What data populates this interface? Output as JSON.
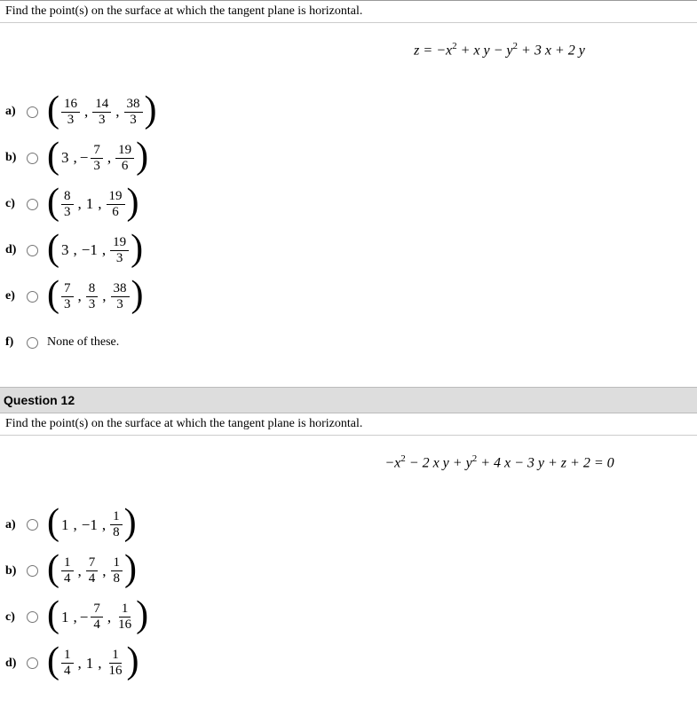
{
  "q11": {
    "prompt": "Find the point(s) on the surface at which the tangent plane is horizontal.",
    "equation_html": "<span class='eq-italic'>z</span> = −<span class='eq-italic'>x</span><sup>2</sup> + <span class='eq-italic'>x y</span> − <span class='eq-italic'>y</span><sup>2</sup> + 3 <span class='eq-italic'>x</span> + 2 <span class='eq-italic'>y</span>",
    "answers": [
      {
        "label": "a)",
        "type": "triple_frac",
        "terms": [
          {
            "n": "16",
            "d": "3"
          },
          {
            "n": "14",
            "d": "3"
          },
          {
            "n": "38",
            "d": "3"
          }
        ]
      },
      {
        "label": "b)",
        "type": "mixed",
        "terms": [
          {
            "w": "3"
          },
          {
            "neg": true,
            "n": "7",
            "d": "3"
          },
          {
            "n": "19",
            "d": "6"
          }
        ]
      },
      {
        "label": "c)",
        "type": "mixed",
        "terms": [
          {
            "n": "8",
            "d": "3"
          },
          {
            "w": "1"
          },
          {
            "n": "19",
            "d": "6"
          }
        ]
      },
      {
        "label": "d)",
        "type": "mixed",
        "terms": [
          {
            "w": "3"
          },
          {
            "w": "−1"
          },
          {
            "n": "19",
            "d": "3"
          }
        ]
      },
      {
        "label": "e)",
        "type": "triple_frac",
        "terms": [
          {
            "n": "7",
            "d": "3"
          },
          {
            "n": "8",
            "d": "3"
          },
          {
            "n": "38",
            "d": "3"
          }
        ]
      },
      {
        "label": "f)",
        "type": "text",
        "text": "None of these."
      }
    ]
  },
  "q12": {
    "header": "Question 12",
    "prompt": "Find the point(s) on the surface at which the tangent plane is horizontal.",
    "equation_html": "−<span class='eq-italic'>x</span><sup>2</sup> − 2 <span class='eq-italic'>x y</span> + <span class='eq-italic'>y</span><sup>2</sup> + 4 <span class='eq-italic'>x</span> − 3 <span class='eq-italic'>y</span> + <span class='eq-italic'>z</span> + 2 = 0",
    "answers": [
      {
        "label": "a)",
        "type": "mixed",
        "terms": [
          {
            "w": "1"
          },
          {
            "w": "−1"
          },
          {
            "n": "1",
            "d": "8"
          }
        ]
      },
      {
        "label": "b)",
        "type": "triple_frac",
        "terms": [
          {
            "n": "1",
            "d": "4"
          },
          {
            "n": "7",
            "d": "4"
          },
          {
            "n": "1",
            "d": "8"
          }
        ]
      },
      {
        "label": "c)",
        "type": "mixed",
        "terms": [
          {
            "w": "1"
          },
          {
            "neg": true,
            "n": "7",
            "d": "4"
          },
          {
            "n": "1",
            "d": "16"
          }
        ]
      },
      {
        "label": "d)",
        "type": "mixed",
        "terms": [
          {
            "n": "1",
            "d": "4"
          },
          {
            "w": "1"
          },
          {
            "n": "1",
            "d": "16"
          }
        ]
      }
    ]
  }
}
